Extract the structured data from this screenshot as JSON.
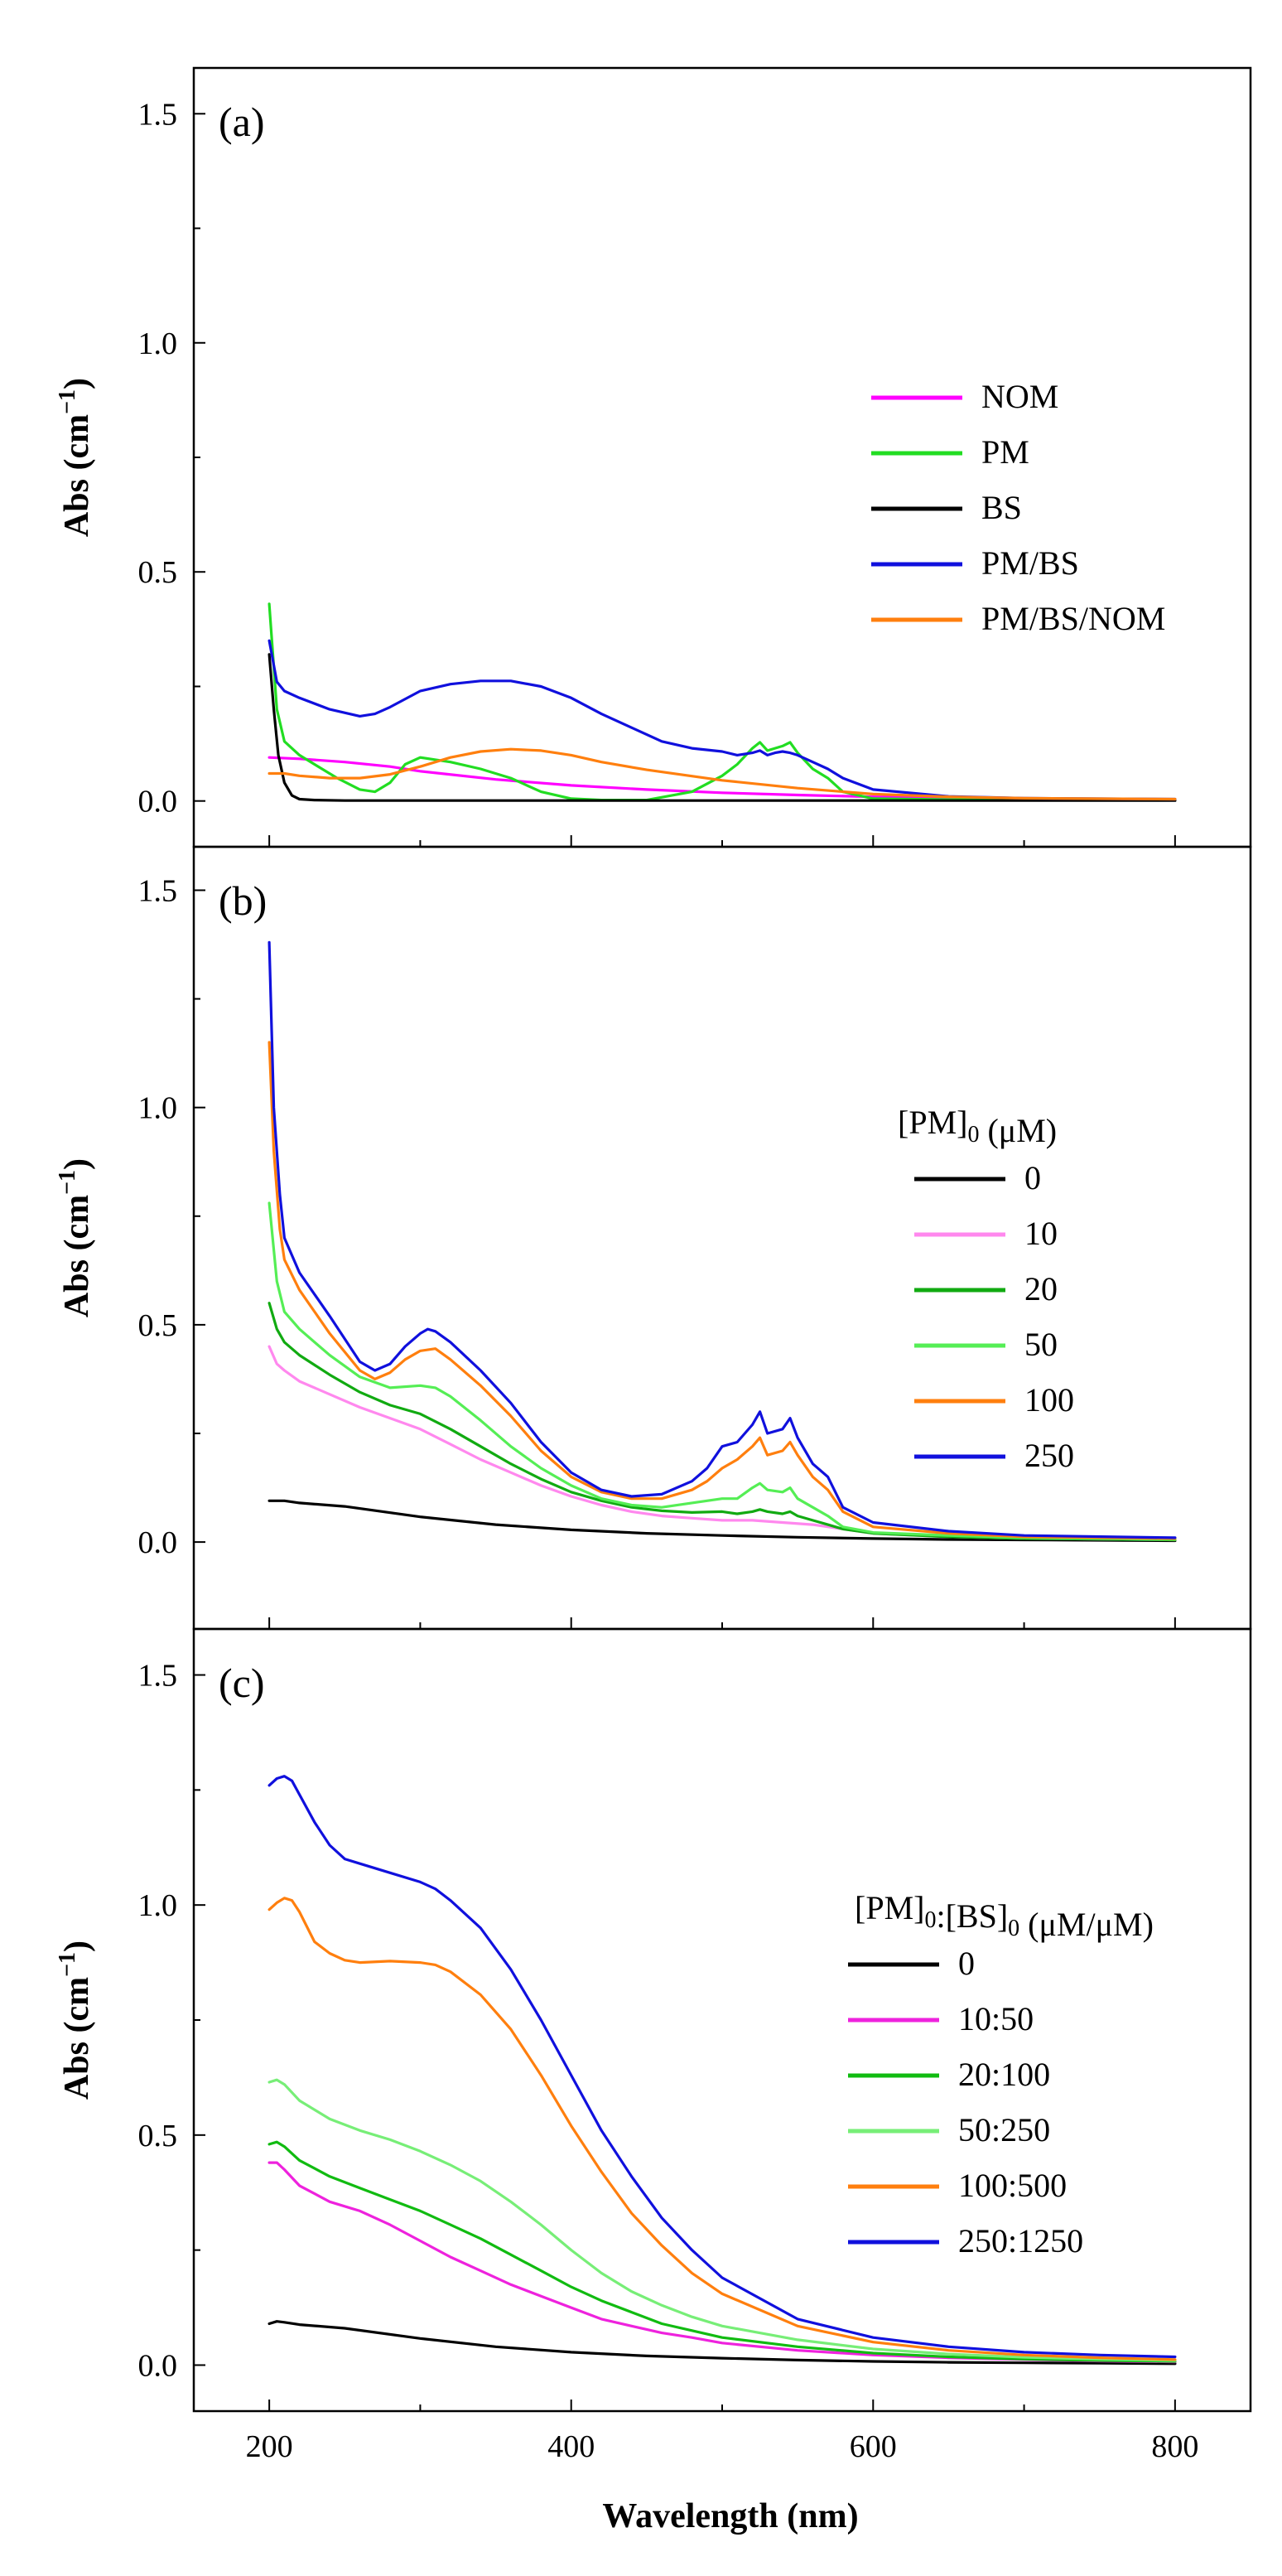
{
  "chart_data": [
    {
      "type": "line",
      "panel_label": "(a)",
      "ylabel": "Abs (cm−1)",
      "xlabel": "",
      "xlim": [
        150,
        850
      ],
      "ylim": [
        -0.1,
        1.6
      ],
      "yticks": [
        0.0,
        0.5,
        1.0,
        1.5
      ],
      "ytick_labels": [
        "0.0",
        "0.5",
        "1.0",
        "1.5"
      ],
      "legend_title": "",
      "legend_position": "right",
      "series": [
        {
          "name": "NOM",
          "color": "#ff00ff",
          "x": [
            200,
            220,
            250,
            280,
            300,
            350,
            400,
            450,
            500,
            550,
            600,
            650,
            700,
            750,
            800
          ],
          "y": [
            0.095,
            0.092,
            0.085,
            0.075,
            0.065,
            0.047,
            0.034,
            0.025,
            0.018,
            0.013,
            0.009,
            0.007,
            0.005,
            0.004,
            0.003
          ]
        },
        {
          "name": "PM",
          "color": "#22dd22",
          "x": [
            200,
            205,
            210,
            220,
            230,
            245,
            260,
            270,
            280,
            290,
            300,
            320,
            340,
            360,
            380,
            400,
            420,
            450,
            480,
            500,
            510,
            520,
            525,
            530,
            535,
            540,
            545,
            550,
            560,
            570,
            580,
            600,
            650,
            700,
            800
          ],
          "y": [
            0.43,
            0.2,
            0.13,
            0.1,
            0.08,
            0.05,
            0.025,
            0.02,
            0.04,
            0.08,
            0.095,
            0.085,
            0.07,
            0.05,
            0.02,
            0.005,
            0.002,
            0.002,
            0.02,
            0.055,
            0.08,
            0.115,
            0.128,
            0.11,
            0.115,
            0.12,
            0.128,
            0.105,
            0.07,
            0.05,
            0.02,
            0.005,
            0.003,
            0.002,
            0.002
          ]
        },
        {
          "name": "BS",
          "color": "#000000",
          "x": [
            200,
            203,
            206,
            210,
            215,
            220,
            230,
            250,
            300,
            400,
            500,
            600,
            700,
            800
          ],
          "y": [
            0.32,
            0.2,
            0.1,
            0.04,
            0.012,
            0.004,
            0.002,
            0.001,
            0.001,
            0.001,
            0.001,
            0.001,
            0.001,
            0.001
          ]
        },
        {
          "name": "PM/BS",
          "color": "#1010dd",
          "x": [
            200,
            205,
            210,
            220,
            240,
            260,
            270,
            280,
            300,
            320,
            340,
            360,
            380,
            400,
            420,
            440,
            460,
            480,
            500,
            510,
            520,
            525,
            530,
            535,
            540,
            545,
            550,
            560,
            570,
            580,
            600,
            650,
            700,
            800
          ],
          "y": [
            0.35,
            0.26,
            0.24,
            0.225,
            0.2,
            0.185,
            0.19,
            0.205,
            0.24,
            0.255,
            0.262,
            0.262,
            0.25,
            0.225,
            0.19,
            0.16,
            0.13,
            0.115,
            0.108,
            0.1,
            0.105,
            0.11,
            0.1,
            0.105,
            0.108,
            0.105,
            0.1,
            0.085,
            0.07,
            0.05,
            0.025,
            0.01,
            0.006,
            0.004
          ]
        },
        {
          "name": "PM/BS/NOM",
          "color": "#ff7f0e",
          "x": [
            200,
            210,
            220,
            240,
            260,
            280,
            300,
            320,
            340,
            360,
            380,
            400,
            420,
            450,
            500,
            550,
            600,
            650,
            700,
            800
          ],
          "y": [
            0.06,
            0.06,
            0.055,
            0.05,
            0.05,
            0.058,
            0.075,
            0.095,
            0.108,
            0.113,
            0.11,
            0.1,
            0.085,
            0.068,
            0.045,
            0.028,
            0.015,
            0.009,
            0.006,
            0.004
          ]
        }
      ]
    },
    {
      "type": "line",
      "panel_label": "(b)",
      "ylabel": "Abs (cm−1)",
      "xlabel": "",
      "xlim": [
        150,
        850
      ],
      "ylim": [
        -0.2,
        1.6
      ],
      "yticks": [
        0.0,
        0.5,
        1.0,
        1.5
      ],
      "ytick_labels": [
        "0.0",
        "0.5",
        "1.0",
        "1.5"
      ],
      "legend_title": "[PM]0 (μM)",
      "legend_position": "right",
      "series": [
        {
          "name": "0",
          "color": "#000000",
          "x": [
            200,
            210,
            220,
            250,
            300,
            350,
            400,
            450,
            500,
            550,
            600,
            650,
            700,
            750,
            800
          ],
          "y": [
            0.095,
            0.095,
            0.09,
            0.082,
            0.058,
            0.04,
            0.028,
            0.02,
            0.015,
            0.011,
            0.008,
            0.006,
            0.005,
            0.004,
            0.003
          ]
        },
        {
          "name": "10",
          "color": "#ff88ee",
          "x": [
            200,
            205,
            210,
            220,
            240,
            260,
            280,
            300,
            320,
            340,
            360,
            380,
            400,
            420,
            440,
            460,
            480,
            500,
            520,
            540,
            560,
            580,
            600,
            650,
            700,
            800
          ],
          "y": [
            0.45,
            0.41,
            0.395,
            0.37,
            0.34,
            0.31,
            0.285,
            0.26,
            0.225,
            0.19,
            0.16,
            0.13,
            0.105,
            0.085,
            0.07,
            0.06,
            0.055,
            0.05,
            0.05,
            0.045,
            0.04,
            0.03,
            0.02,
            0.012,
            0.008,
            0.005
          ]
        },
        {
          "name": "20",
          "color": "#11aa11",
          "x": [
            200,
            205,
            210,
            220,
            240,
            260,
            280,
            300,
            320,
            340,
            360,
            380,
            400,
            420,
            440,
            460,
            480,
            500,
            510,
            520,
            525,
            530,
            540,
            545,
            550,
            560,
            570,
            580,
            600,
            650,
            700,
            800
          ],
          "y": [
            0.55,
            0.49,
            0.46,
            0.43,
            0.385,
            0.345,
            0.315,
            0.295,
            0.26,
            0.22,
            0.18,
            0.145,
            0.115,
            0.095,
            0.08,
            0.072,
            0.068,
            0.07,
            0.065,
            0.07,
            0.075,
            0.07,
            0.065,
            0.07,
            0.06,
            0.05,
            0.04,
            0.03,
            0.02,
            0.012,
            0.008,
            0.005
          ]
        },
        {
          "name": "50",
          "color": "#55ee55",
          "x": [
            200,
            205,
            210,
            220,
            240,
            260,
            280,
            300,
            310,
            320,
            340,
            360,
            380,
            400,
            420,
            440,
            460,
            480,
            500,
            510,
            520,
            525,
            530,
            540,
            545,
            550,
            560,
            570,
            580,
            600,
            650,
            700,
            800
          ],
          "y": [
            0.78,
            0.6,
            0.53,
            0.49,
            0.43,
            0.38,
            0.355,
            0.36,
            0.355,
            0.335,
            0.28,
            0.22,
            0.17,
            0.13,
            0.1,
            0.085,
            0.08,
            0.09,
            0.1,
            0.1,
            0.125,
            0.135,
            0.12,
            0.115,
            0.125,
            0.1,
            0.08,
            0.06,
            0.035,
            0.022,
            0.015,
            0.01,
            0.006
          ]
        },
        {
          "name": "100",
          "color": "#ff7f0e",
          "x": [
            200,
            203,
            207,
            210,
            220,
            240,
            260,
            270,
            280,
            290,
            300,
            310,
            320,
            340,
            360,
            380,
            400,
            420,
            440,
            460,
            480,
            490,
            500,
            510,
            520,
            525,
            530,
            540,
            545,
            550,
            560,
            570,
            580,
            600,
            650,
            700,
            800
          ],
          "y": [
            1.15,
            0.9,
            0.72,
            0.65,
            0.58,
            0.48,
            0.395,
            0.375,
            0.39,
            0.42,
            0.44,
            0.445,
            0.42,
            0.36,
            0.29,
            0.21,
            0.15,
            0.115,
            0.1,
            0.1,
            0.12,
            0.14,
            0.17,
            0.19,
            0.22,
            0.24,
            0.2,
            0.21,
            0.23,
            0.2,
            0.15,
            0.12,
            0.07,
            0.035,
            0.02,
            0.012,
            0.008
          ]
        },
        {
          "name": "250",
          "color": "#1010dd",
          "x": [
            200,
            203,
            207,
            210,
            220,
            240,
            260,
            270,
            280,
            290,
            300,
            305,
            310,
            320,
            340,
            360,
            380,
            400,
            420,
            440,
            460,
            480,
            490,
            500,
            510,
            520,
            525,
            530,
            540,
            545,
            550,
            560,
            570,
            580,
            600,
            650,
            700,
            800
          ],
          "y": [
            1.38,
            1.0,
            0.8,
            0.7,
            0.62,
            0.52,
            0.415,
            0.395,
            0.41,
            0.45,
            0.48,
            0.49,
            0.485,
            0.46,
            0.395,
            0.32,
            0.23,
            0.16,
            0.12,
            0.105,
            0.11,
            0.14,
            0.17,
            0.22,
            0.23,
            0.27,
            0.3,
            0.25,
            0.26,
            0.285,
            0.24,
            0.18,
            0.15,
            0.08,
            0.045,
            0.025,
            0.015,
            0.01
          ]
        }
      ]
    },
    {
      "type": "line",
      "panel_label": "(c)",
      "ylabel": "Abs (cm−1)",
      "xlabel": "Wavelength (nm)",
      "xlim": [
        150,
        850
      ],
      "ylim": [
        -0.1,
        1.6
      ],
      "yticks": [
        0.0,
        0.5,
        1.0,
        1.5
      ],
      "ytick_labels": [
        "0.0",
        "0.5",
        "1.0",
        "1.5"
      ],
      "xticks": [
        200,
        400,
        600,
        800
      ],
      "xtick_labels": [
        "200",
        "400",
        "600",
        "800"
      ],
      "legend_title": "[PM]0:[BS]0 (μM/μM)",
      "legend_position": "right",
      "series": [
        {
          "name": "0",
          "color": "#000000",
          "x": [
            200,
            205,
            210,
            220,
            250,
            300,
            350,
            400,
            450,
            500,
            550,
            600,
            650,
            700,
            750,
            800
          ],
          "y": [
            0.09,
            0.095,
            0.093,
            0.088,
            0.08,
            0.058,
            0.04,
            0.028,
            0.02,
            0.015,
            0.011,
            0.008,
            0.006,
            0.005,
            0.004,
            0.003
          ]
        },
        {
          "name": "10:50",
          "color": "#ee22dd",
          "x": [
            200,
            205,
            210,
            220,
            240,
            260,
            280,
            300,
            320,
            340,
            360,
            380,
            400,
            420,
            440,
            460,
            480,
            500,
            550,
            600,
            650,
            700,
            750,
            800
          ],
          "y": [
            0.44,
            0.44,
            0.425,
            0.39,
            0.355,
            0.335,
            0.305,
            0.27,
            0.235,
            0.205,
            0.175,
            0.15,
            0.125,
            0.1,
            0.085,
            0.07,
            0.06,
            0.048,
            0.032,
            0.022,
            0.016,
            0.012,
            0.009,
            0.007
          ]
        },
        {
          "name": "20:100",
          "color": "#11bb11",
          "x": [
            200,
            205,
            210,
            220,
            240,
            260,
            280,
            300,
            320,
            340,
            360,
            380,
            400,
            420,
            440,
            460,
            480,
            500,
            550,
            600,
            650,
            700,
            750,
            800
          ],
          "y": [
            0.48,
            0.485,
            0.475,
            0.445,
            0.41,
            0.385,
            0.36,
            0.335,
            0.305,
            0.275,
            0.24,
            0.205,
            0.17,
            0.14,
            0.115,
            0.09,
            0.075,
            0.06,
            0.04,
            0.026,
            0.018,
            0.013,
            0.01,
            0.008
          ]
        },
        {
          "name": "50:250",
          "color": "#77ee77",
          "x": [
            200,
            205,
            210,
            220,
            240,
            260,
            280,
            300,
            320,
            340,
            360,
            380,
            400,
            420,
            440,
            460,
            480,
            500,
            550,
            600,
            650,
            700,
            750,
            800
          ],
          "y": [
            0.615,
            0.62,
            0.61,
            0.575,
            0.535,
            0.51,
            0.49,
            0.465,
            0.435,
            0.4,
            0.355,
            0.305,
            0.25,
            0.2,
            0.16,
            0.13,
            0.105,
            0.085,
            0.055,
            0.035,
            0.024,
            0.017,
            0.013,
            0.01
          ]
        },
        {
          "name": "100:500",
          "color": "#ff7f0e",
          "x": [
            200,
            205,
            210,
            215,
            220,
            230,
            240,
            250,
            260,
            280,
            300,
            310,
            320,
            340,
            360,
            380,
            400,
            420,
            440,
            460,
            480,
            500,
            550,
            600,
            650,
            700,
            750,
            800
          ],
          "y": [
            0.99,
            1.005,
            1.015,
            1.01,
            0.985,
            0.92,
            0.895,
            0.88,
            0.875,
            0.878,
            0.875,
            0.87,
            0.855,
            0.805,
            0.73,
            0.63,
            0.52,
            0.42,
            0.33,
            0.26,
            0.2,
            0.155,
            0.085,
            0.05,
            0.032,
            0.022,
            0.016,
            0.012
          ]
        },
        {
          "name": "250:1250",
          "color": "#1010dd",
          "x": [
            200,
            205,
            210,
            215,
            220,
            230,
            240,
            250,
            260,
            280,
            300,
            310,
            320,
            340,
            360,
            380,
            400,
            420,
            440,
            460,
            480,
            500,
            550,
            600,
            650,
            700,
            750,
            800
          ],
          "y": [
            1.26,
            1.275,
            1.28,
            1.27,
            1.24,
            1.18,
            1.13,
            1.1,
            1.09,
            1.07,
            1.05,
            1.035,
            1.01,
            0.95,
            0.86,
            0.75,
            0.63,
            0.51,
            0.41,
            0.32,
            0.25,
            0.19,
            0.1,
            0.06,
            0.04,
            0.028,
            0.022,
            0.018
          ]
        }
      ]
    }
  ]
}
